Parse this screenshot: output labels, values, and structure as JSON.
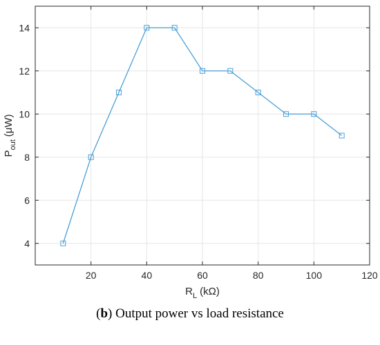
{
  "chart_data": {
    "type": "line",
    "x": [
      10,
      20,
      30,
      40,
      50,
      60,
      70,
      80,
      90,
      100,
      110
    ],
    "series": [
      {
        "values": [
          4,
          8,
          11,
          14,
          14,
          12,
          12,
          11,
          10,
          10,
          9
        ],
        "color": "#4a9fd8",
        "marker": "square"
      }
    ],
    "xlim": [
      0,
      120
    ],
    "ylim": [
      3,
      15
    ],
    "xticks": [
      20,
      40,
      60,
      80,
      100,
      120
    ],
    "yticks": [
      4,
      6,
      8,
      10,
      12,
      14
    ],
    "xlabel": {
      "main": "R",
      "sub": "L",
      "unit": "(kΩ)"
    },
    "ylabel": {
      "main": "P",
      "sub": "out",
      "unit": "(μW)"
    },
    "grid": true
  },
  "caption": {
    "label": "b",
    "text": "Output power vs load resistance"
  }
}
